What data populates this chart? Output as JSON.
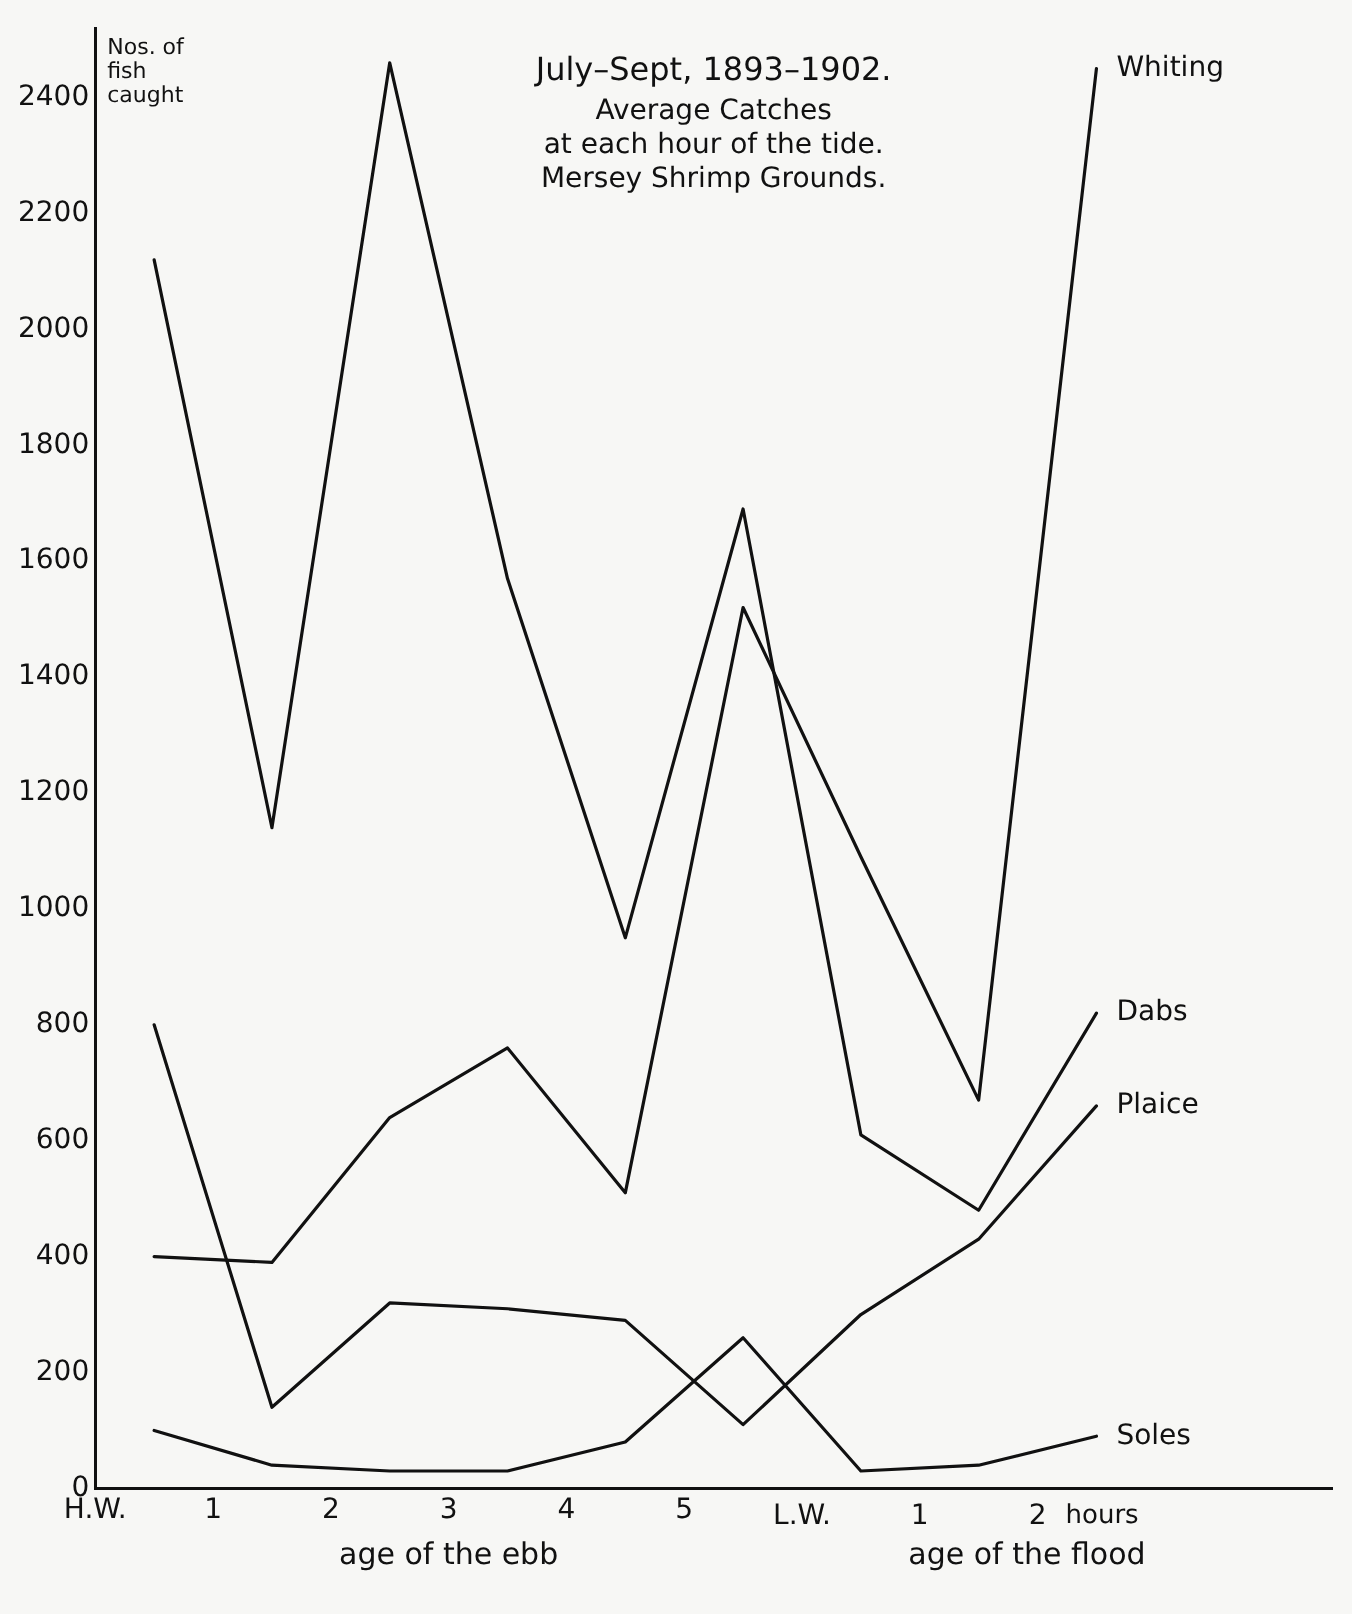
{
  "chart_data": {
    "type": "line",
    "title": "July–Sept, 1893–1902.",
    "subtitle": "Average Catches\nat each hour of the tide.\nMersey Shrimp Grounds.",
    "ylabel": "Nos. of fish caught",
    "xlabel": "hours",
    "x": [
      0.5,
      1.5,
      2.5,
      3.5,
      4.5,
      5.5,
      6.5,
      7.5,
      8.5
    ],
    "series": [
      {
        "name": "Whiting",
        "color": "#111111",
        "values": [
          400,
          390,
          640,
          760,
          510,
          1520,
          1090,
          670,
          2450
        ]
      },
      {
        "name": "Dabs",
        "color": "#111111",
        "values": [
          2120,
          1140,
          2460,
          1570,
          950,
          1690,
          610,
          480,
          820
        ]
      },
      {
        "name": "Plaice",
        "color": "#111111",
        "values": [
          800,
          140,
          320,
          310,
          290,
          110,
          300,
          430,
          660
        ]
      },
      {
        "name": "Soles",
        "color": "#111111",
        "values": [
          100,
          40,
          30,
          30,
          80,
          260,
          30,
          40,
          90
        ]
      }
    ],
    "xlim": [
      0,
      10.5
    ],
    "xticks": [
      {
        "value": 0,
        "label": "H.W."
      },
      1,
      2,
      3,
      4,
      5
    ],
    "x2lim": [
      -6,
      4.5
    ],
    "x2ticks": [
      {
        "value": 0,
        "label": "L.W."
      },
      1,
      2
    ],
    "ylim": [
      0,
      2520
    ],
    "yticks": [
      0,
      200,
      400,
      600,
      800,
      1000,
      1200,
      1400,
      1600,
      1800,
      2000,
      2200,
      2400
    ],
    "annotations": [
      "age of the ebb",
      "age of the flood"
    ],
    "grid": false,
    "legend": false,
    "marker": "none",
    "line_style": "solid"
  }
}
